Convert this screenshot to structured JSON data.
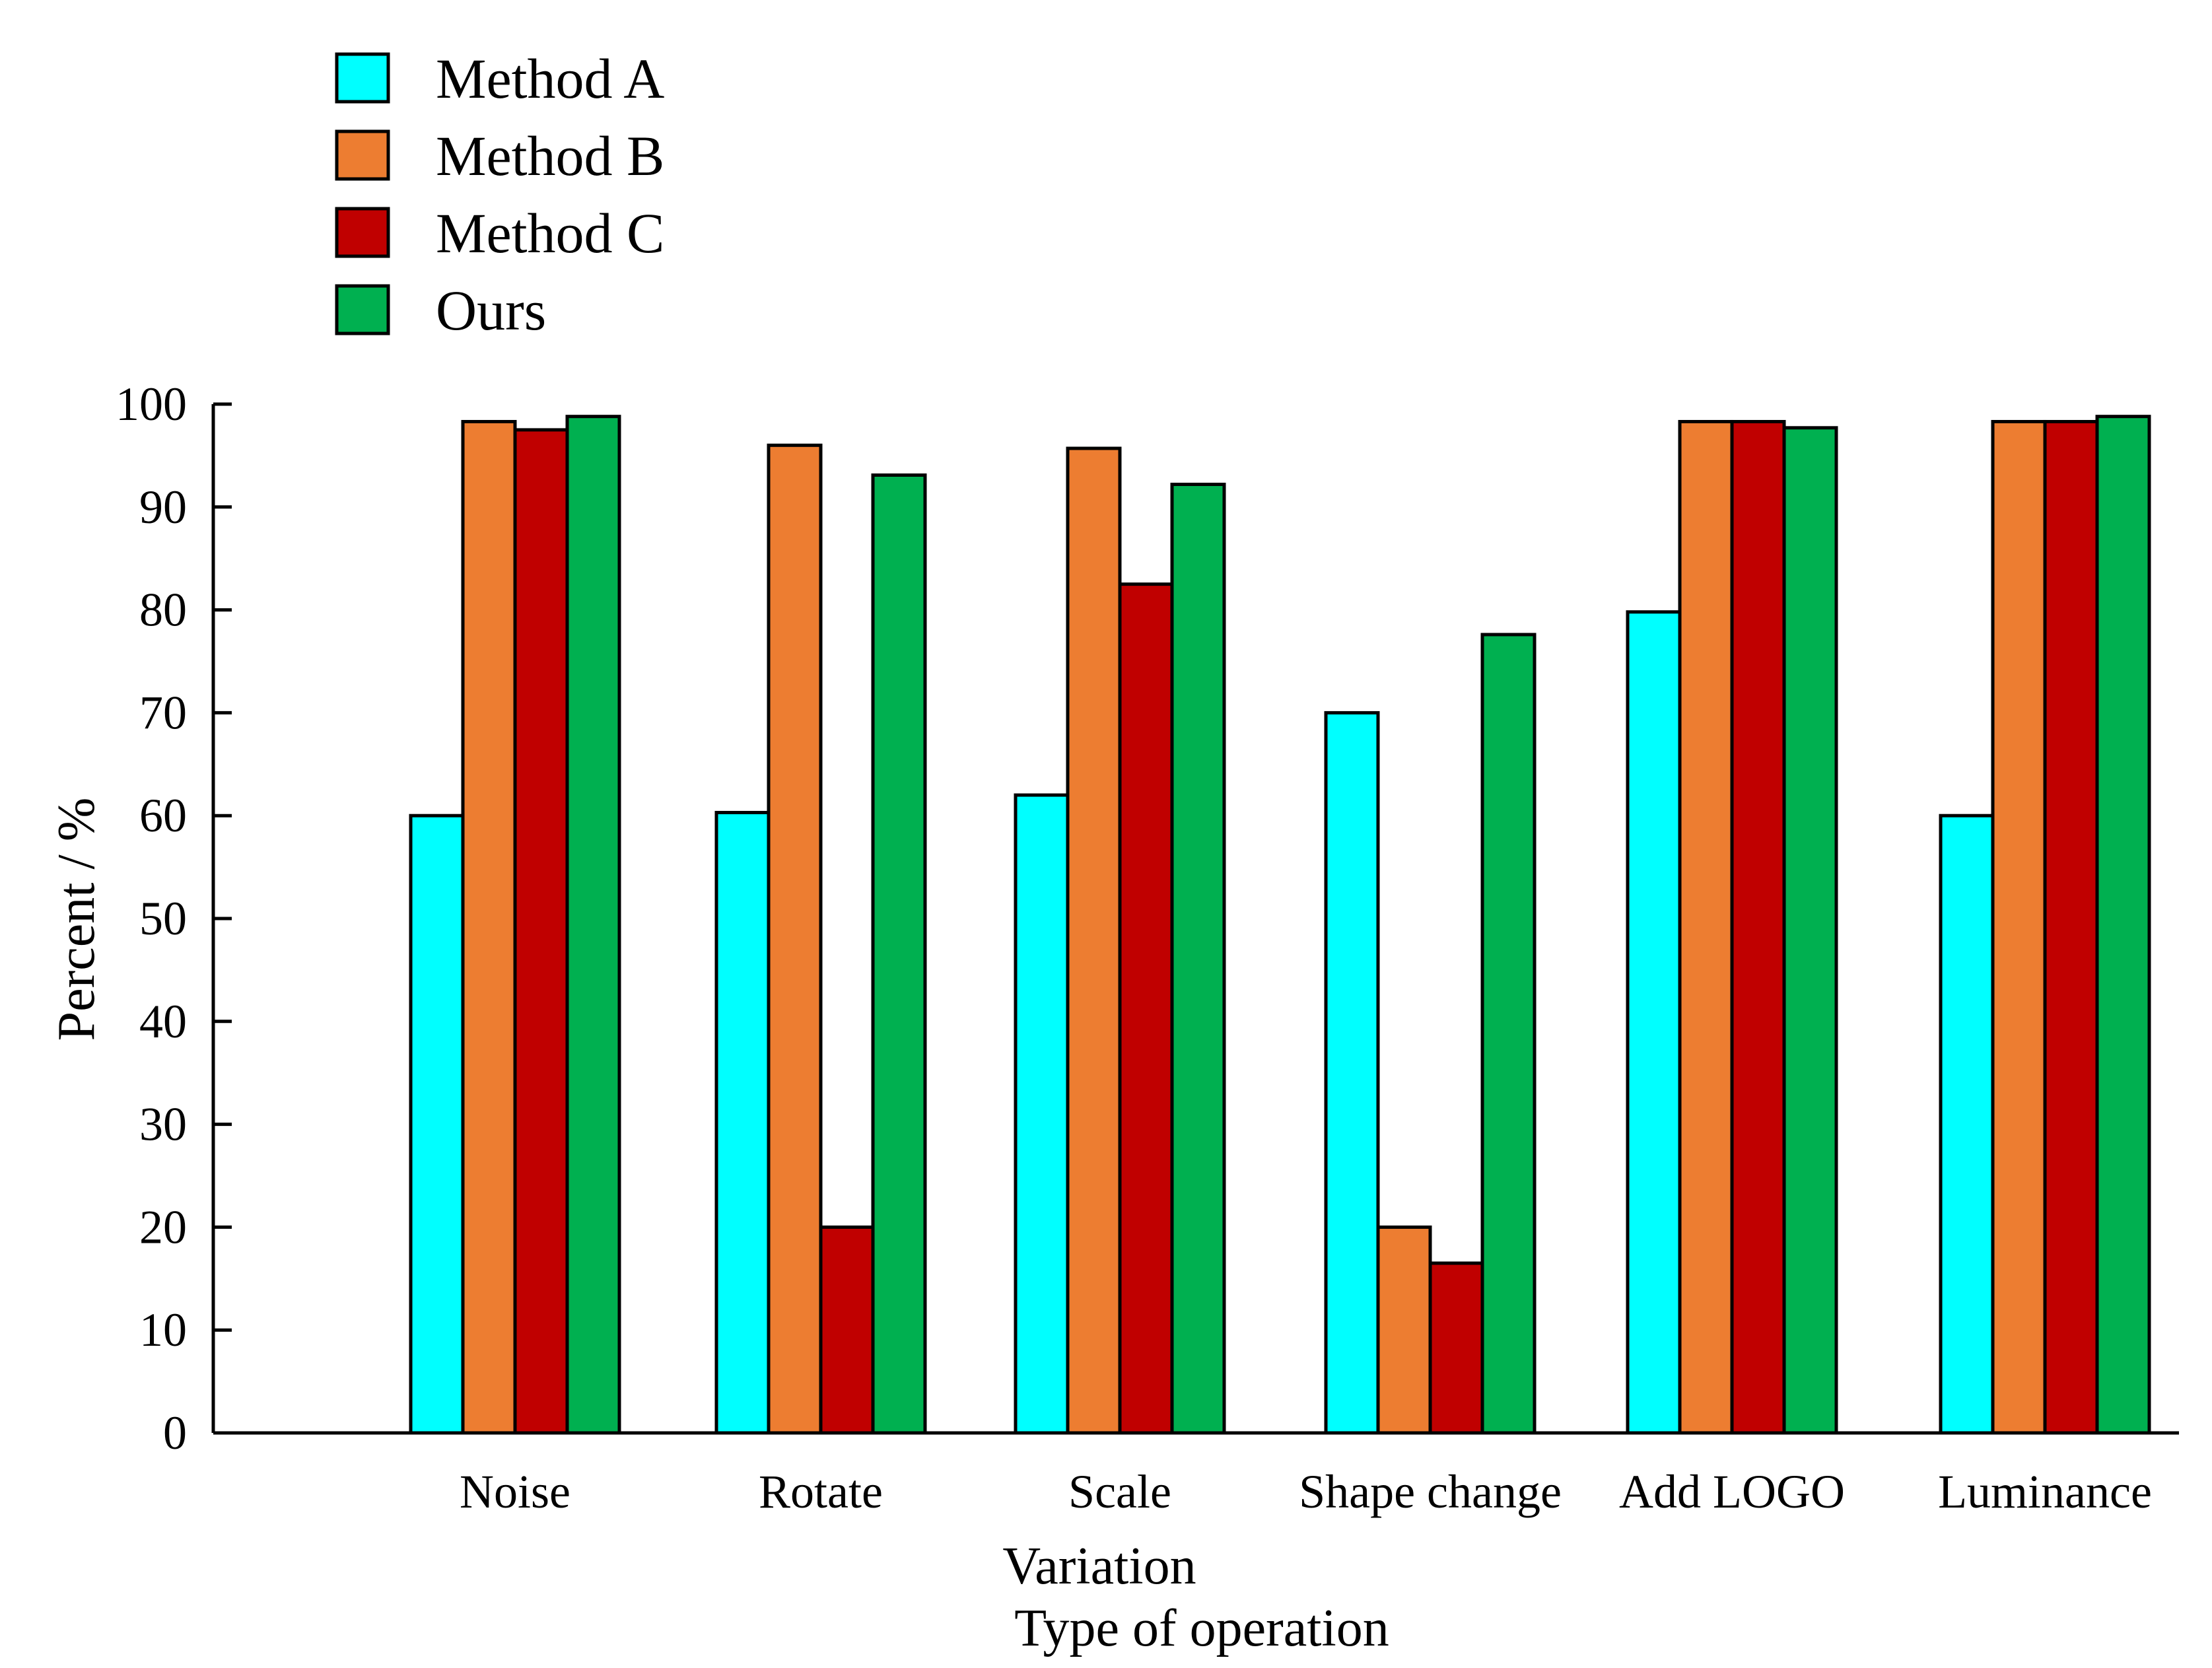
{
  "chart_data": {
    "type": "bar",
    "categories": [
      "Noise",
      "Rotate",
      "Scale",
      "Shape change",
      "Add LOGO",
      "Luminance"
    ],
    "series": [
      {
        "name": "Method A",
        "color": "#00FFFF",
        "values": [
          60,
          60.3,
          62,
          70,
          79.8,
          60
        ]
      },
      {
        "name": "Method B",
        "color": "#ED7D31",
        "values": [
          98.3,
          96,
          95.7,
          20,
          98.3,
          98.3
        ]
      },
      {
        "name": "Method C",
        "color": "#C00000",
        "values": [
          97.5,
          20,
          82.5,
          16.5,
          98.3,
          98.3
        ]
      },
      {
        "name": "Ours",
        "color": "#00B050",
        "values": [
          98.8,
          93.1,
          92.2,
          77.6,
          97.7,
          98.8
        ]
      }
    ],
    "xlabel": "Variation",
    "xlabel_line2": "Type of operation",
    "ylabel": "Percent / %",
    "ylim": [
      0,
      100
    ],
    "yticks": [
      0,
      10,
      20,
      30,
      40,
      50,
      60,
      70,
      80,
      90,
      100
    ],
    "legend_position": "top-left"
  }
}
